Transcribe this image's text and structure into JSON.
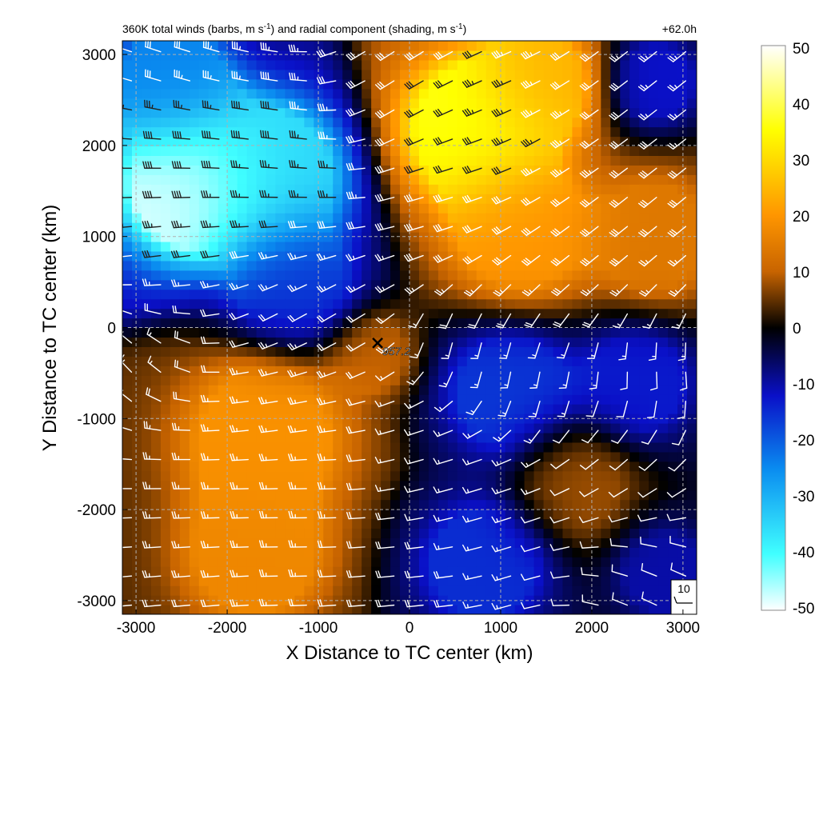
{
  "header": {
    "title": "360K total winds (barbs, m s-1) and radial component (shading, m s-1)",
    "title_parts": [
      "360K total winds (barbs, m s",
      "-1",
      ") and radial component (shading, m s",
      "-1",
      ")"
    ],
    "forecast_hour": "+62.0h"
  },
  "chart_data": {
    "type": "heatmap",
    "title": "360K total winds (barbs, m s-1) and radial component (shading, m s-1)",
    "xlabel": "X Distance to TC center (km)",
    "ylabel": "Y Distance to TC center (km)",
    "xlim": [
      -3150,
      3150
    ],
    "ylim": [
      -3150,
      3150
    ],
    "x_ticks": [
      -3000,
      -2000,
      -1000,
      0,
      1000,
      2000,
      3000
    ],
    "y_ticks": [
      -3000,
      -2000,
      -1000,
      0,
      1000,
      2000,
      3000
    ],
    "grid": true,
    "colorbar": {
      "min": -50,
      "max": 50,
      "ticks": [
        50,
        40,
        30,
        20,
        10,
        0,
        -10,
        -20,
        -30,
        -40,
        -50
      ],
      "colors": [
        {
          "value": -50,
          "color": "#ffffff"
        },
        {
          "value": -40,
          "color": "#40ffff"
        },
        {
          "value": -25,
          "color": "#0a8cf0"
        },
        {
          "value": -12,
          "color": "#0a10c8"
        },
        {
          "value": 0,
          "color": "#000000"
        },
        {
          "value": 10,
          "color": "#c86400"
        },
        {
          "value": 20,
          "color": "#ff9600"
        },
        {
          "value": 35,
          "color": "#ffff00"
        },
        {
          "value": 50,
          "color": "#ffffff"
        }
      ]
    },
    "radial_wind_field": [
      {
        "x": -2400,
        "y": 1550,
        "value": -48,
        "spread": 900
      },
      {
        "x": -1500,
        "y": 1700,
        "value": -35,
        "spread": 900
      },
      {
        "x": -2600,
        "y": 2700,
        "value": -24,
        "spread": 800
      },
      {
        "x": -1300,
        "y": 500,
        "value": -16,
        "spread": 800
      },
      {
        "x": 700,
        "y": 2200,
        "value": 36,
        "spread": 900
      },
      {
        "x": 1400,
        "y": 2700,
        "value": 24,
        "spread": 700
      },
      {
        "x": 1200,
        "y": 1100,
        "value": 20,
        "spread": 900
      },
      {
        "x": 2700,
        "y": 1000,
        "value": 14,
        "spread": 800
      },
      {
        "x": 2700,
        "y": 2700,
        "value": -12,
        "spread": 550
      },
      {
        "x": -1600,
        "y": -1200,
        "value": 19,
        "spread": 1000
      },
      {
        "x": -1700,
        "y": -2500,
        "value": 17,
        "spread": 900
      },
      {
        "x": 1100,
        "y": -700,
        "value": -16,
        "spread": 800
      },
      {
        "x": 2500,
        "y": -600,
        "value": -13,
        "spread": 700
      },
      {
        "x": 800,
        "y": -2600,
        "value": -15,
        "spread": 800
      },
      {
        "x": 1800,
        "y": -1700,
        "value": 8,
        "spread": 700
      },
      {
        "x": 2800,
        "y": -2700,
        "value": -10,
        "spread": 600
      },
      {
        "x": -400,
        "y": -300,
        "value": 10,
        "spread": 500
      }
    ],
    "wind_barb_spacing_km": 320,
    "wind_barb_samples": [
      {
        "x": -2700,
        "y": 2900,
        "u": 30,
        "v": -10
      },
      {
        "x": -1500,
        "y": 2200,
        "u": 38,
        "v": -6
      },
      {
        "x": -2700,
        "y": 1600,
        "u": 42,
        "v": 0
      },
      {
        "x": -1500,
        "y": 1300,
        "u": 35,
        "v": 0
      },
      {
        "x": -2700,
        "y": 700,
        "u": 28,
        "v": 6
      },
      {
        "x": -1300,
        "y": 300,
        "u": 18,
        "v": 12
      },
      {
        "x": 0,
        "y": 2800,
        "u": 24,
        "v": 16
      },
      {
        "x": 1000,
        "y": 2500,
        "u": 32,
        "v": 12
      },
      {
        "x": 700,
        "y": 1600,
        "u": 30,
        "v": 8
      },
      {
        "x": 1800,
        "y": 2200,
        "u": 28,
        "v": 20
      },
      {
        "x": 2600,
        "y": 2700,
        "u": 20,
        "v": 16
      },
      {
        "x": 1500,
        "y": 800,
        "u": 26,
        "v": 20
      },
      {
        "x": 2700,
        "y": 900,
        "u": 22,
        "v": 18
      },
      {
        "x": 1200,
        "y": -300,
        "u": 2,
        "v": 16
      },
      {
        "x": 2700,
        "y": -400,
        "u": -2,
        "v": 12
      },
      {
        "x": -2900,
        "y": -300,
        "u": 10,
        "v": -14
      },
      {
        "x": -1700,
        "y": -800,
        "u": 26,
        "v": 4
      },
      {
        "x": -2400,
        "y": -1600,
        "u": 28,
        "v": 0
      },
      {
        "x": -1200,
        "y": -2200,
        "u": 24,
        "v": 0
      },
      {
        "x": -2400,
        "y": -2800,
        "u": 22,
        "v": 2
      },
      {
        "x": 500,
        "y": -1500,
        "u": 14,
        "v": 4
      },
      {
        "x": 1500,
        "y": -2300,
        "u": 12,
        "v": 4
      },
      {
        "x": 2500,
        "y": -2700,
        "u": 8,
        "v": -4
      },
      {
        "x": 2400,
        "y": -1500,
        "u": 10,
        "v": 8
      },
      {
        "x": -200,
        "y": -2700,
        "u": 20,
        "v": 2
      }
    ],
    "tc_center": {
      "x": -350,
      "y": -170,
      "label": "957.2"
    },
    "annotations": [
      {
        "text": "957.2"
      },
      {
        "text": "10"
      }
    ]
  },
  "reference_barb": {
    "label": "10",
    "speed": 10
  }
}
